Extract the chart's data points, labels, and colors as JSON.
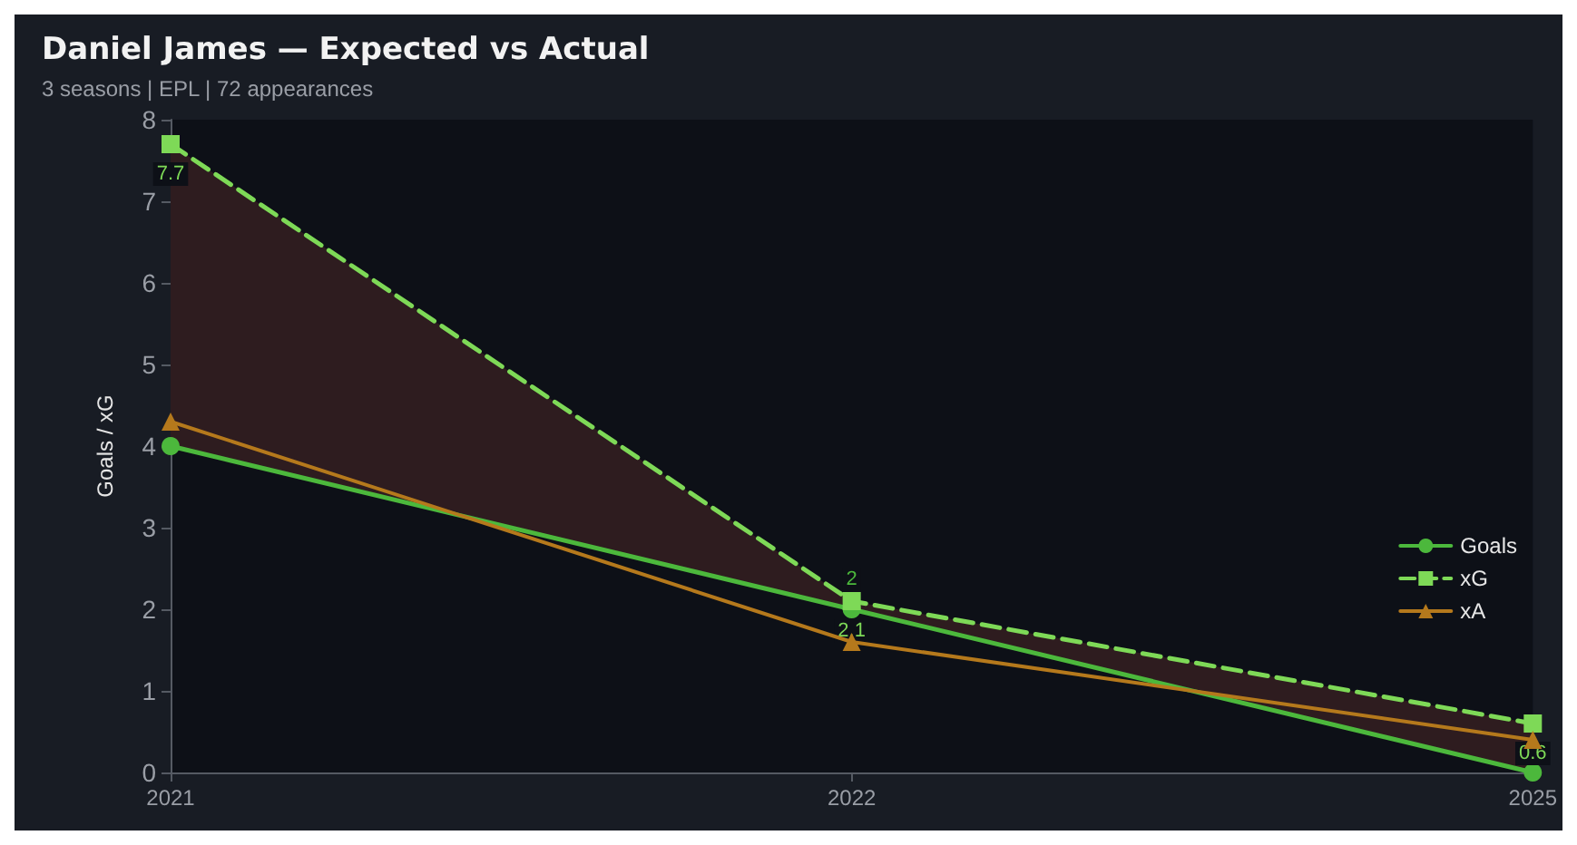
{
  "chart_data": {
    "type": "line",
    "title": "Daniel James — Expected vs Actual",
    "subtitle": "3 seasons | EPL | 72 appearances",
    "ylabel": "Goals / xG",
    "categories": [
      "2021",
      "2022",
      "2025"
    ],
    "ylim": [
      0,
      8
    ],
    "yticks": [
      0,
      1,
      2,
      3,
      4,
      5,
      6,
      7,
      8
    ],
    "grid": false,
    "legend": "bottom right",
    "series": [
      {
        "name": "Goals",
        "color": "#4cb83c",
        "values": [
          4,
          2,
          0
        ],
        "marker": "circle",
        "line_style": "solid",
        "value_labels": [
          null,
          "2",
          null
        ]
      },
      {
        "name": "xG",
        "color": "#7ed957",
        "values": [
          7.7,
          2.1,
          0.6
        ],
        "marker": "square",
        "line_style": "dashed",
        "lower": [
          4,
          2,
          0
        ],
        "upper": [
          7.7,
          2.1,
          0.6
        ],
        "value_labels": [
          "7.7",
          "2.1",
          "0.6"
        ]
      },
      {
        "name": "xA",
        "color": "#b5791c",
        "values": [
          4.3,
          1.6,
          0.4
        ],
        "marker": "triangle",
        "line_style": "solid"
      }
    ]
  }
}
